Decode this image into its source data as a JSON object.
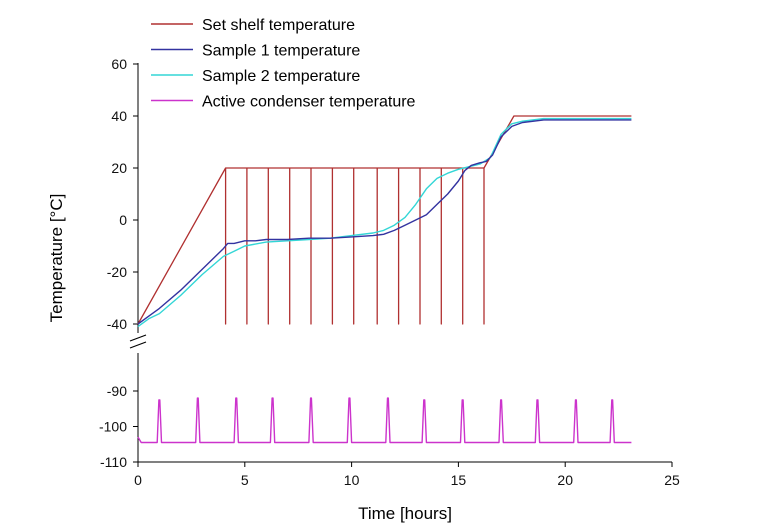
{
  "chart_data": {
    "type": "line",
    "xlabel": "Time [hours]",
    "ylabel": "Temperature [°C]",
    "xlim": [
      0,
      25
    ],
    "x_ticks": [
      "0",
      "5",
      "10",
      "15",
      "20",
      "25"
    ],
    "y_axis_upper": {
      "ylim": [
        -40,
        60
      ],
      "ticks": [
        "-40",
        "-20",
        "0",
        "20",
        "40",
        "60"
      ]
    },
    "y_axis_lower": {
      "ylim": [
        -110,
        -85
      ],
      "ticks": [
        "-110",
        "-100",
        "-90"
      ]
    },
    "axis_break": true,
    "legend_position": "top-left",
    "series": [
      {
        "name": "Set shelf temperature",
        "color": "#b03030",
        "x": [
          0,
          4.1,
          4.1,
          4.1,
          5.1,
          5.1,
          5.1,
          6.1,
          6.1,
          6.1,
          7.1,
          7.1,
          7.1,
          8.1,
          8.1,
          8.1,
          9.1,
          9.1,
          9.1,
          10.1,
          10.1,
          10.1,
          11.2,
          11.2,
          11.2,
          12.2,
          12.2,
          12.2,
          13.2,
          13.2,
          13.2,
          14.2,
          14.2,
          14.2,
          15.2,
          15.2,
          15.2,
          16.2,
          16.2,
          16.2,
          17.6,
          23.1
        ],
        "y": [
          -40,
          20,
          -40,
          20,
          20,
          -40,
          20,
          20,
          -40,
          20,
          20,
          -40,
          20,
          20,
          -40,
          20,
          20,
          -40,
          20,
          20,
          -40,
          20,
          20,
          -40,
          20,
          20,
          -40,
          20,
          20,
          -40,
          20,
          20,
          -40,
          20,
          20,
          -40,
          20,
          20,
          -40,
          20,
          40,
          40
        ]
      },
      {
        "name": "Sample 1 temperature",
        "color": "#3333a0",
        "x": [
          0,
          0.5,
          1,
          2,
          3,
          4,
          4.2,
          4.5,
          5,
          5.5,
          6,
          7,
          8,
          9,
          10,
          11,
          11.5,
          12,
          12.5,
          13,
          13.5,
          14,
          14.5,
          15,
          15.3,
          15.6,
          16,
          16.3,
          16.6,
          17,
          17.5,
          18,
          19,
          20,
          21,
          22,
          23.1
        ],
        "y": [
          -40,
          -37,
          -34,
          -27,
          -19,
          -11,
          -9,
          -9,
          -8,
          -8,
          -7.5,
          -7.5,
          -7,
          -7,
          -6.5,
          -6,
          -5.5,
          -4,
          -2,
          0,
          2,
          6,
          10,
          15,
          19,
          21,
          22,
          22.5,
          25,
          32,
          36,
          37.5,
          38.5,
          38.5,
          38.5,
          38.5,
          38.5
        ]
      },
      {
        "name": "Sample 2 temperature",
        "color": "#33d6d6",
        "x": [
          0,
          0.5,
          1,
          2,
          3,
          4,
          4.5,
          5,
          6,
          7,
          8,
          9,
          10,
          11,
          11.5,
          12,
          12.5,
          13,
          13.5,
          14,
          14.5,
          15,
          15.5,
          16,
          16.5,
          17,
          17.5,
          18,
          19,
          20,
          21,
          22,
          23.1
        ],
        "y": [
          -41,
          -38,
          -36,
          -29,
          -21,
          -14,
          -12,
          -10,
          -8.5,
          -8,
          -7.5,
          -7,
          -6,
          -5,
          -4,
          -2,
          1,
          6,
          12,
          16,
          18,
          19.5,
          20.5,
          21.5,
          24,
          33,
          37,
          38,
          39,
          39,
          39,
          39,
          39
        ]
      },
      {
        "name": "Active condenser temperature",
        "color": "#cc33cc",
        "baseline": -104.5,
        "peak_x": [
          0,
          1.0,
          2.8,
          4.6,
          6.3,
          8.1,
          9.9,
          11.7,
          13.4,
          15.2,
          17.0,
          18.7,
          20.5,
          22.2
        ],
        "peak_y": [
          -103,
          -92.5,
          -92,
          -92,
          -92,
          -92,
          -92,
          -92,
          -92.5,
          -92.5,
          -92.5,
          -92.5,
          -92.5,
          -92.5
        ]
      }
    ]
  }
}
